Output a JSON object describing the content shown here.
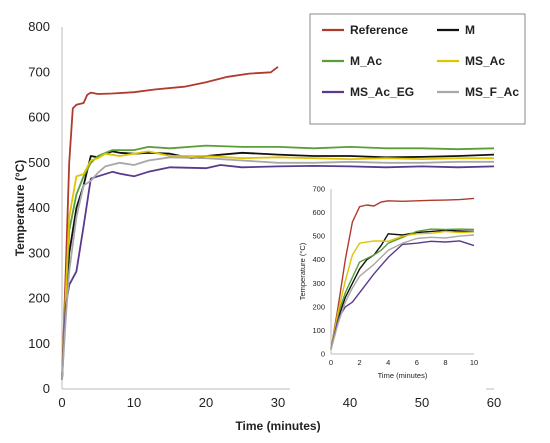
{
  "chart_data": [
    {
      "type": "line",
      "xlabel": "Time (minutes)",
      "ylabel": "Temperature (°C)",
      "xlim": [
        0,
        60
      ],
      "ylim": [
        0,
        800
      ],
      "xticks": [
        0,
        10,
        20,
        30,
        40,
        50,
        60
      ],
      "yticks": [
        0,
        100,
        200,
        300,
        400,
        500,
        600,
        700,
        800
      ],
      "grid": false,
      "legend": "top-right",
      "series": [
        {
          "name": "Reference",
          "color": "#b03a2e",
          "points": [
            [
              0,
              20
            ],
            [
              0.5,
              250
            ],
            [
              1,
              500
            ],
            [
              1.5,
              620
            ],
            [
              2,
              628
            ],
            [
              3,
              632
            ],
            [
              3.5,
              650
            ],
            [
              4,
              655
            ],
            [
              5,
              652
            ],
            [
              7,
              653
            ],
            [
              10,
              656
            ],
            [
              13,
              662
            ],
            [
              17,
              668
            ],
            [
              20,
              678
            ],
            [
              23,
              690
            ],
            [
              26,
              697
            ],
            [
              29,
              700
            ],
            [
              30,
              712
            ]
          ]
        },
        {
          "name": "M",
          "color": "#111111",
          "points": [
            [
              0,
              20
            ],
            [
              0.5,
              180
            ],
            [
              1,
              300
            ],
            [
              2,
              400
            ],
            [
              3,
              450
            ],
            [
              4,
              515
            ],
            [
              5,
              512
            ],
            [
              6,
              520
            ],
            [
              7,
              525
            ],
            [
              8,
              522
            ],
            [
              10,
              520
            ],
            [
              12,
              522
            ],
            [
              15,
              520
            ],
            [
              18,
              510
            ],
            [
              20,
              515
            ],
            [
              25,
              522
            ],
            [
              30,
              518
            ],
            [
              35,
              515
            ],
            [
              40,
              515
            ],
            [
              45,
              512
            ],
            [
              50,
              513
            ],
            [
              55,
              515
            ],
            [
              60,
              518
            ]
          ]
        },
        {
          "name": "M_Ac",
          "color": "#5a9e3a",
          "points": [
            [
              0,
              20
            ],
            [
              0.5,
              200
            ],
            [
              1,
              350
            ],
            [
              2,
              430
            ],
            [
              3,
              470
            ],
            [
              4,
              500
            ],
            [
              5,
              515
            ],
            [
              7,
              528
            ],
            [
              10,
              528
            ],
            [
              12,
              535
            ],
            [
              15,
              532
            ],
            [
              20,
              538
            ],
            [
              25,
              535
            ],
            [
              30,
              535
            ],
            [
              35,
              532
            ],
            [
              40,
              535
            ],
            [
              45,
              532
            ],
            [
              50,
              532
            ],
            [
              55,
              530
            ],
            [
              60,
              532
            ]
          ]
        },
        {
          "name": "MS_Ac",
          "color": "#e0c400",
          "points": [
            [
              0,
              20
            ],
            [
              0.5,
              200
            ],
            [
              1,
              380
            ],
            [
              2,
              470
            ],
            [
              3,
              475
            ],
            [
              4,
              505
            ],
            [
              5,
              510
            ],
            [
              6,
              520
            ],
            [
              8,
              515
            ],
            [
              10,
              520
            ],
            [
              12,
              525
            ],
            [
              15,
              515
            ],
            [
              20,
              515
            ],
            [
              25,
              510
            ],
            [
              30,
              512
            ],
            [
              35,
              510
            ],
            [
              40,
              508
            ],
            [
              45,
              510
            ],
            [
              50,
              508
            ],
            [
              55,
              510
            ],
            [
              60,
              510
            ]
          ]
        },
        {
          "name": "MS_Ac_EG",
          "color": "#5b3a8e",
          "points": [
            [
              0,
              20
            ],
            [
              0.5,
              180
            ],
            [
              1,
              230
            ],
            [
              2,
              260
            ],
            [
              3,
              360
            ],
            [
              4,
              465
            ],
            [
              5,
              470
            ],
            [
              7,
              480
            ],
            [
              8,
              476
            ],
            [
              10,
              470
            ],
            [
              12,
              480
            ],
            [
              15,
              490
            ],
            [
              20,
              488
            ],
            [
              22,
              495
            ],
            [
              25,
              490
            ],
            [
              30,
              492
            ],
            [
              35,
              493
            ],
            [
              40,
              492
            ],
            [
              45,
              490
            ],
            [
              50,
              492
            ],
            [
              55,
              490
            ],
            [
              60,
              492
            ]
          ]
        },
        {
          "name": "MS_F_Ac",
          "color": "#a8a8a8",
          "points": [
            [
              0,
              20
            ],
            [
              0.5,
              150
            ],
            [
              1,
              260
            ],
            [
              2,
              380
            ],
            [
              3,
              450
            ],
            [
              4,
              460
            ],
            [
              5,
              478
            ],
            [
              6,
              492
            ],
            [
              8,
              500
            ],
            [
              10,
              495
            ],
            [
              12,
              505
            ],
            [
              15,
              512
            ],
            [
              20,
              510
            ],
            [
              25,
              505
            ],
            [
              30,
              500
            ],
            [
              35,
              500
            ],
            [
              40,
              502
            ],
            [
              45,
              500
            ],
            [
              50,
              500
            ],
            [
              55,
              502
            ],
            [
              60,
              502
            ]
          ]
        }
      ]
    },
    {
      "type": "line",
      "xlabel": "Time (minutes)",
      "ylabel": "Temperature (°C)",
      "xlim": [
        0,
        10
      ],
      "ylim": [
        0,
        700
      ],
      "xticks": [
        0,
        2,
        4,
        6,
        8,
        10
      ],
      "yticks": [
        0,
        100,
        200,
        300,
        400,
        500,
        600,
        700
      ],
      "grid": false,
      "series": [
        {
          "name": "Reference",
          "color": "#b03a2e",
          "points": [
            [
              0,
              20
            ],
            [
              0.5,
              200
            ],
            [
              1,
              400
            ],
            [
              1.5,
              560
            ],
            [
              2,
              625
            ],
            [
              2.5,
              632
            ],
            [
              3,
              628
            ],
            [
              3.5,
              645
            ],
            [
              4,
              650
            ],
            [
              5,
              648
            ],
            [
              6,
              650
            ],
            [
              7,
              652
            ],
            [
              8,
              653
            ],
            [
              9,
              655
            ],
            [
              10,
              660
            ]
          ]
        },
        {
          "name": "M",
          "color": "#111111",
          "points": [
            [
              0,
              20
            ],
            [
              0.5,
              150
            ],
            [
              1,
              240
            ],
            [
              1.5,
              300
            ],
            [
              2,
              360
            ],
            [
              2.5,
              400
            ],
            [
              3,
              420
            ],
            [
              3.5,
              460
            ],
            [
              4,
              510
            ],
            [
              5,
              505
            ],
            [
              6,
              515
            ],
            [
              7,
              520
            ],
            [
              8,
              525
            ],
            [
              9,
              522
            ],
            [
              10,
              520
            ]
          ]
        },
        {
          "name": "M_Ac",
          "color": "#5a9e3a",
          "points": [
            [
              0,
              20
            ],
            [
              0.5,
              170
            ],
            [
              1,
              260
            ],
            [
              2,
              390
            ],
            [
              3,
              420
            ],
            [
              3.5,
              440
            ],
            [
              4,
              470
            ],
            [
              5,
              495
            ],
            [
              6,
              520
            ],
            [
              7,
              530
            ],
            [
              8,
              528
            ],
            [
              9,
              530
            ],
            [
              10,
              528
            ]
          ]
        },
        {
          "name": "MS_Ac",
          "color": "#e0c400",
          "points": [
            [
              0,
              20
            ],
            [
              0.5,
              180
            ],
            [
              1,
              310
            ],
            [
              1.5,
              420
            ],
            [
              2,
              470
            ],
            [
              3,
              480
            ],
            [
              4,
              478
            ],
            [
              5,
              500
            ],
            [
              6,
              510
            ],
            [
              7,
              512
            ],
            [
              8,
              520
            ],
            [
              9,
              515
            ],
            [
              10,
              518
            ]
          ]
        },
        {
          "name": "MS_Ac_EG",
          "color": "#5b3a8e",
          "points": [
            [
              0,
              20
            ],
            [
              0.5,
              150
            ],
            [
              1,
              200
            ],
            [
              1.5,
              220
            ],
            [
              2,
              260
            ],
            [
              3,
              340
            ],
            [
              4,
              410
            ],
            [
              5,
              465
            ],
            [
              6,
              470
            ],
            [
              7,
              478
            ],
            [
              8,
              475
            ],
            [
              9,
              480
            ],
            [
              10,
              460
            ]
          ]
        },
        {
          "name": "MS_F_Ac",
          "color": "#a8a8a8",
          "points": [
            [
              0,
              20
            ],
            [
              0.5,
              130
            ],
            [
              1,
              220
            ],
            [
              1.5,
              280
            ],
            [
              2,
              330
            ],
            [
              3,
              380
            ],
            [
              4,
              440
            ],
            [
              5,
              470
            ],
            [
              6,
              490
            ],
            [
              7,
              495
            ],
            [
              8,
              492
            ],
            [
              9,
              500
            ],
            [
              10,
              505
            ]
          ]
        }
      ]
    }
  ]
}
